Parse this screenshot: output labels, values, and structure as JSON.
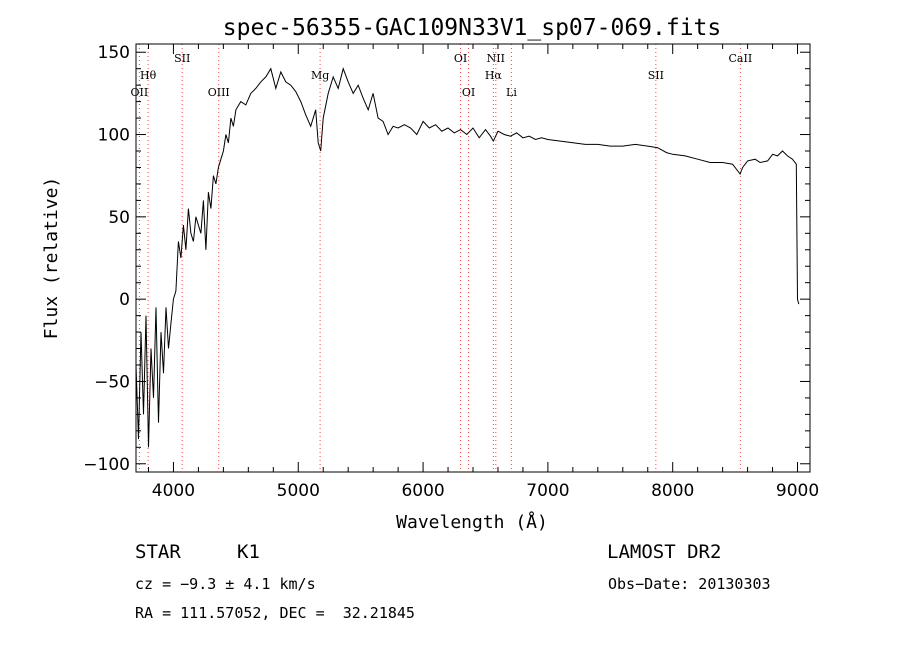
{
  "chart_data": {
    "type": "line",
    "title": "spec-56355-GAC109N33V1_sp07-069.fits",
    "xlabel": "Wavelength (Å)",
    "ylabel": "Flux (relative)",
    "xlim": [
      3700,
      9100
    ],
    "ylim": [
      -105,
      155
    ],
    "x_ticks": [
      4000,
      5000,
      6000,
      7000,
      8000,
      9000
    ],
    "y_ticks": [
      -100,
      -50,
      0,
      50,
      100,
      150
    ],
    "x_tick_labels": [
      "4000",
      "5000",
      "6000",
      "7000",
      "8000",
      "9000"
    ],
    "y_tick_labels": [
      "−100",
      "−50",
      "0",
      "50",
      "100",
      "150"
    ],
    "grid": false,
    "series": [
      {
        "color": "#000000",
        "x": [
          3700,
          3720,
          3740,
          3760,
          3780,
          3800,
          3820,
          3840,
          3860,
          3880,
          3900,
          3920,
          3940,
          3960,
          3980,
          4000,
          4020,
          4040,
          4060,
          4080,
          4100,
          4120,
          4140,
          4160,
          4180,
          4200,
          4220,
          4240,
          4260,
          4280,
          4300,
          4320,
          4340,
          4360,
          4380,
          4400,
          4420,
          4440,
          4460,
          4480,
          4500,
          4540,
          4580,
          4620,
          4660,
          4700,
          4740,
          4780,
          4820,
          4860,
          4900,
          4940,
          4980,
          5020,
          5060,
          5100,
          5140,
          5160,
          5180,
          5200,
          5240,
          5280,
          5320,
          5360,
          5400,
          5440,
          5480,
          5520,
          5560,
          5600,
          5640,
          5680,
          5720,
          5760,
          5800,
          5850,
          5900,
          5950,
          6000,
          6050,
          6100,
          6150,
          6200,
          6250,
          6300,
          6350,
          6400,
          6450,
          6500,
          6540,
          6563,
          6600,
          6650,
          6700,
          6750,
          6800,
          6850,
          6900,
          6950,
          7000,
          7100,
          7200,
          7300,
          7400,
          7500,
          7600,
          7700,
          7800,
          7880,
          7950,
          8000,
          8100,
          8200,
          8300,
          8400,
          8480,
          8540,
          8560,
          8600,
          8660,
          8700,
          8760,
          8800,
          8840,
          8880,
          8920,
          8960,
          8990,
          9000,
          9010
        ],
        "values": [
          -40,
          -85,
          -20,
          -70,
          -10,
          -90,
          -30,
          -60,
          -5,
          -75,
          -20,
          -45,
          -5,
          -30,
          -15,
          0,
          5,
          35,
          25,
          45,
          30,
          55,
          40,
          35,
          50,
          45,
          40,
          60,
          30,
          65,
          55,
          75,
          70,
          80,
          85,
          90,
          100,
          95,
          110,
          105,
          115,
          120,
          118,
          125,
          128,
          132,
          135,
          140,
          128,
          138,
          132,
          130,
          126,
          120,
          112,
          105,
          115,
          95,
          90,
          110,
          125,
          135,
          128,
          140,
          132,
          125,
          130,
          122,
          115,
          125,
          110,
          108,
          100,
          105,
          104,
          106,
          104,
          100,
          108,
          104,
          106,
          102,
          104,
          101,
          103,
          100,
          104,
          98,
          103,
          99,
          96,
          102,
          100,
          99,
          101,
          98,
          99,
          97,
          98,
          97,
          96,
          95,
          94,
          94,
          93,
          93,
          94,
          93,
          92,
          89,
          88,
          87,
          85,
          83,
          83,
          82,
          76,
          80,
          84,
          85,
          83,
          84,
          88,
          87,
          90,
          87,
          85,
          82,
          0,
          -3
        ]
      }
    ],
    "spectral_lines": [
      {
        "label": "OII",
        "x": 3727,
        "row": 3
      },
      {
        "label": "Hθ",
        "x": 3797,
        "row": 2
      },
      {
        "label": "SII",
        "x": 4070,
        "row": 1
      },
      {
        "label": "OIII",
        "x": 4363,
        "row": 3
      },
      {
        "label": "Mg",
        "x": 5175,
        "row": 2
      },
      {
        "label": "OI",
        "x": 6300,
        "row": 1
      },
      {
        "label": "OI",
        "x": 6364,
        "row": 3
      },
      {
        "label": "NII",
        "x": 6583,
        "row": 1
      },
      {
        "label": "Hα",
        "x": 6563,
        "row": 2
      },
      {
        "label": "Li",
        "x": 6708,
        "row": 3
      },
      {
        "label": "SII",
        "x": 7865,
        "row": 2
      },
      {
        "label": "CaII",
        "x": 8542,
        "row": 1
      }
    ]
  },
  "info": {
    "object_class": "STAR",
    "subclass": "K1",
    "survey": "LAMOST DR2",
    "redshift": "cz = −9.3 ± 4.1 km/s",
    "obs_date": "Obs−Date: 20130303",
    "coords": "RA = 111.57052, DEC =  32.21845"
  }
}
